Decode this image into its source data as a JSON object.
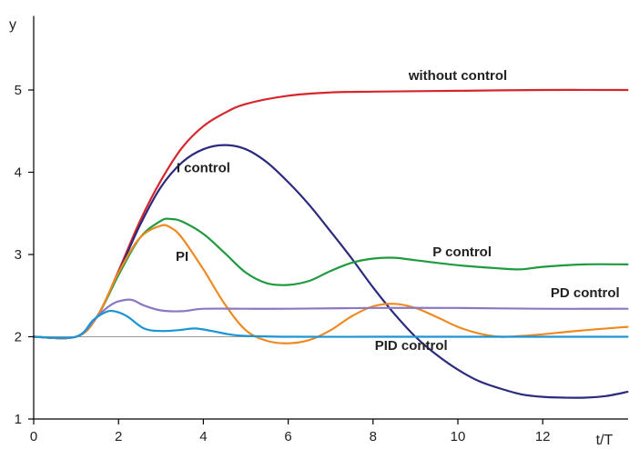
{
  "chart_data": {
    "type": "line",
    "xlabel": "t/T",
    "ylabel": "y",
    "xlim": [
      0,
      14
    ],
    "ylim": [
      1,
      5.9
    ],
    "x_ticks": [
      0,
      2,
      4,
      6,
      8,
      10,
      12
    ],
    "y_ticks": [
      1,
      2,
      3,
      4,
      5
    ],
    "reference_line": 2,
    "grid": false,
    "series": [
      {
        "name": "without control",
        "color": "#d7262b",
        "x": [
          0,
          1,
          1.5,
          2,
          2.5,
          3,
          3.5,
          4,
          4.5,
          5,
          6,
          7,
          8,
          10,
          12,
          14
        ],
        "y": [
          2.0,
          2.0,
          2.25,
          2.8,
          3.4,
          3.9,
          4.3,
          4.56,
          4.72,
          4.83,
          4.93,
          4.97,
          4.98,
          4.99,
          5.0,
          5.0
        ]
      },
      {
        "name": "I control",
        "color": "#2b2a7e",
        "x": [
          0,
          1,
          1.5,
          2,
          2.5,
          3,
          3.5,
          4,
          4.5,
          5,
          5.5,
          6,
          6.5,
          7,
          7.5,
          8,
          8.5,
          9,
          9.5,
          10,
          10.5,
          11,
          11.5,
          12,
          12.5,
          13,
          13.5,
          14
        ],
        "y": [
          2.0,
          2.0,
          2.25,
          2.78,
          3.35,
          3.82,
          4.12,
          4.28,
          4.33,
          4.28,
          4.12,
          3.88,
          3.6,
          3.28,
          2.95,
          2.6,
          2.28,
          2.0,
          1.78,
          1.6,
          1.46,
          1.37,
          1.3,
          1.27,
          1.26,
          1.26,
          1.28,
          1.33
        ]
      },
      {
        "name": "P control",
        "color": "#1f9a3e",
        "x": [
          0,
          1,
          1.5,
          2,
          2.5,
          3,
          3.25,
          3.5,
          4,
          4.5,
          5,
          5.5,
          6,
          6.5,
          7,
          7.5,
          8,
          8.5,
          9,
          10,
          11,
          11.5,
          12,
          13,
          14
        ],
        "y": [
          2.0,
          2.0,
          2.25,
          2.75,
          3.2,
          3.41,
          3.43,
          3.4,
          3.25,
          3.02,
          2.78,
          2.65,
          2.63,
          2.68,
          2.8,
          2.9,
          2.95,
          2.96,
          2.93,
          2.87,
          2.83,
          2.82,
          2.85,
          2.88,
          2.88
        ]
      },
      {
        "name": "PI",
        "color": "#ef8a22",
        "x": [
          0,
          1,
          1.5,
          2,
          2.5,
          3,
          3.25,
          3.5,
          4,
          4.5,
          5,
          5.5,
          6,
          6.5,
          7,
          7.5,
          8,
          8.5,
          9,
          9.5,
          10,
          10.5,
          11,
          11.5,
          12,
          13,
          14
        ],
        "y": [
          2.0,
          2.0,
          2.25,
          2.78,
          3.2,
          3.35,
          3.32,
          3.2,
          2.82,
          2.4,
          2.08,
          1.95,
          1.92,
          1.96,
          2.08,
          2.25,
          2.37,
          2.4,
          2.35,
          2.24,
          2.12,
          2.04,
          2.0,
          2.01,
          2.03,
          2.08,
          2.12
        ]
      },
      {
        "name": "PD control",
        "color": "#8a78c2",
        "x": [
          0,
          1,
          1.5,
          1.8,
          2,
          2.3,
          2.6,
          3,
          3.5,
          4,
          5,
          6,
          8,
          10,
          12,
          14
        ],
        "y": [
          2.0,
          2.0,
          2.25,
          2.38,
          2.43,
          2.45,
          2.38,
          2.32,
          2.31,
          2.34,
          2.34,
          2.34,
          2.35,
          2.35,
          2.34,
          2.34
        ]
      },
      {
        "name": "PID control",
        "color": "#1b95d3",
        "x": [
          0,
          1,
          1.4,
          1.7,
          1.9,
          2.2,
          2.6,
          3,
          3.4,
          3.8,
          4.2,
          4.6,
          5,
          6,
          8,
          10,
          12,
          14
        ],
        "y": [
          2.0,
          2.0,
          2.2,
          2.3,
          2.31,
          2.25,
          2.1,
          2.07,
          2.08,
          2.1,
          2.07,
          2.03,
          2.01,
          2.0,
          2.0,
          2.0,
          2.0,
          2.0
        ]
      }
    ],
    "labels": [
      {
        "text": "without control",
        "x": 10.0,
        "y": 5.12,
        "anchor": "middle"
      },
      {
        "text": "I control",
        "x": 4.0,
        "y": 4.0,
        "anchor": "middle"
      },
      {
        "text": "P control",
        "x": 10.1,
        "y": 2.98,
        "anchor": "middle"
      },
      {
        "text": "PI",
        "x": 3.5,
        "y": 2.92,
        "anchor": "middle"
      },
      {
        "text": "PD control",
        "x": 13.0,
        "y": 2.48,
        "anchor": "middle"
      },
      {
        "text": "PID control",
        "x": 8.9,
        "y": 1.84,
        "anchor": "middle"
      }
    ]
  }
}
